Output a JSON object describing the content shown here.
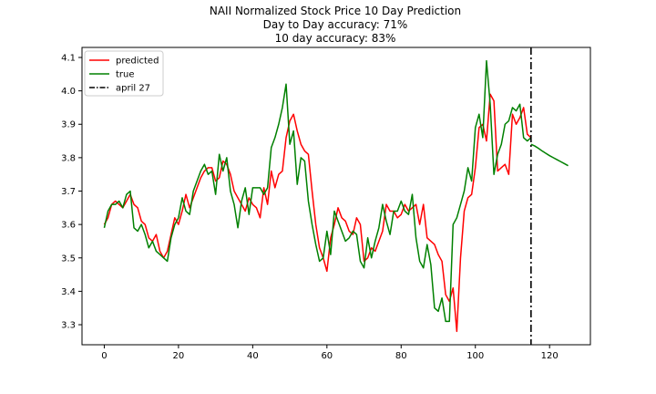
{
  "chart_data": {
    "type": "line",
    "title_lines": [
      "NAII Normalized Stock Price 10 Day Prediction",
      "Day to Day accuracy: 71%",
      "10 day accuracy: 83%"
    ],
    "xlabel": "",
    "ylabel": "",
    "xlim": [
      -6,
      131
    ],
    "ylim": [
      3.24,
      4.13
    ],
    "xticks": [
      0,
      20,
      40,
      60,
      80,
      100,
      120
    ],
    "yticks": [
      3.3,
      3.4,
      3.5,
      3.6,
      3.7,
      3.8,
      3.9,
      4.0,
      4.1
    ],
    "grid": false,
    "legend_position": "top-left",
    "colors": {
      "predicted": "#ff0000",
      "true": "#008000",
      "marker": "#000000"
    },
    "series": [
      {
        "name": "predicted",
        "x_start": 0,
        "values": [
          3.6,
          3.62,
          3.66,
          3.67,
          3.66,
          3.65,
          3.67,
          3.69,
          3.66,
          3.65,
          3.61,
          3.6,
          3.56,
          3.55,
          3.57,
          3.52,
          3.5,
          3.52,
          3.57,
          3.62,
          3.6,
          3.64,
          3.69,
          3.65,
          3.68,
          3.71,
          3.74,
          3.76,
          3.77,
          3.77,
          3.73,
          3.74,
          3.79,
          3.78,
          3.75,
          3.7,
          3.68,
          3.66,
          3.64,
          3.68,
          3.66,
          3.65,
          3.62,
          3.71,
          3.66,
          3.76,
          3.71,
          3.75,
          3.76,
          3.86,
          3.91,
          3.93,
          3.88,
          3.84,
          3.82,
          3.81,
          3.7,
          3.6,
          3.53,
          3.5,
          3.46,
          3.56,
          3.6,
          3.65,
          3.62,
          3.61,
          3.58,
          3.57,
          3.62,
          3.6,
          3.49,
          3.5,
          3.53,
          3.52,
          3.55,
          3.58,
          3.66,
          3.64,
          3.64,
          3.62,
          3.63,
          3.66,
          3.64,
          3.65,
          3.66,
          3.6,
          3.66,
          3.56,
          3.55,
          3.54,
          3.51,
          3.49,
          3.39,
          3.37,
          3.41,
          3.28,
          3.5,
          3.64,
          3.68,
          3.69,
          3.77,
          3.89,
          3.9,
          3.85,
          3.99,
          3.97,
          3.76,
          3.77,
          3.78,
          3.75,
          3.93,
          3.9,
          3.92,
          3.95,
          3.87,
          3.86
        ]
      },
      {
        "name": "true",
        "x_start": 0,
        "values": [
          3.59,
          3.64,
          3.66,
          3.66,
          3.67,
          3.65,
          3.69,
          3.7,
          3.59,
          3.58,
          3.6,
          3.57,
          3.53,
          3.55,
          3.52,
          3.51,
          3.5,
          3.49,
          3.56,
          3.6,
          3.62,
          3.68,
          3.64,
          3.63,
          3.7,
          3.73,
          3.76,
          3.78,
          3.75,
          3.76,
          3.69,
          3.81,
          3.76,
          3.8,
          3.7,
          3.66,
          3.59,
          3.67,
          3.71,
          3.63,
          3.71,
          3.71,
          3.71,
          3.69,
          3.71,
          3.83,
          3.86,
          3.9,
          3.95,
          4.02,
          3.84,
          3.88,
          3.72,
          3.8,
          3.79,
          3.67,
          3.6,
          3.54,
          3.49,
          3.5,
          3.58,
          3.51,
          3.64,
          3.61,
          3.58,
          3.55,
          3.56,
          3.58,
          3.57,
          3.49,
          3.47,
          3.56,
          3.5,
          3.55,
          3.59,
          3.66,
          3.61,
          3.57,
          3.64,
          3.64,
          3.67,
          3.64,
          3.63,
          3.69,
          3.56,
          3.49,
          3.47,
          3.54,
          3.48,
          3.35,
          3.34,
          3.38,
          3.31,
          3.31,
          3.6,
          3.62,
          3.66,
          3.7,
          3.77,
          3.73,
          3.89,
          3.93,
          3.86,
          4.09,
          3.96,
          3.75,
          3.81,
          3.84,
          3.9,
          3.91,
          3.95,
          3.94,
          3.96,
          3.86,
          3.85,
          3.86
        ]
      },
      {
        "name": "true",
        "x_start": 115,
        "values": [
          3.84,
          3.835,
          3.828,
          3.82,
          3.813,
          3.806,
          3.8,
          3.794,
          3.788,
          3.782,
          3.776
        ]
      }
    ],
    "vertical_line": {
      "x": 115,
      "label": "april 27"
    }
  }
}
